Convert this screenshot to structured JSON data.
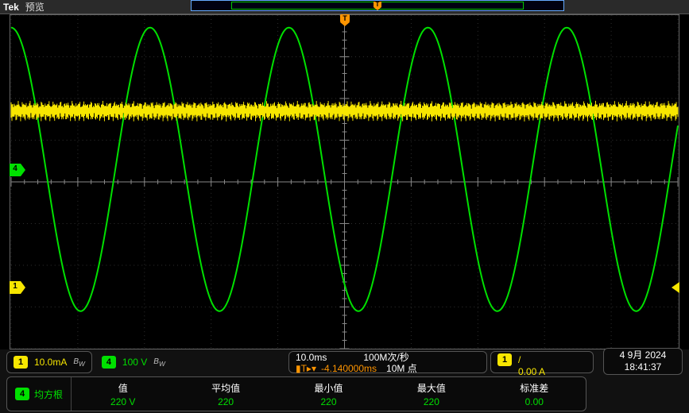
{
  "brand": "Tek",
  "mode": "预览",
  "colors": {
    "ch1": "#f7e600",
    "ch4": "#00e000",
    "trigger": "#ff9500",
    "grid_major": "#303030",
    "grid_minor": "#1a1a1a",
    "background": "#000000",
    "border": "#666666"
  },
  "horizontal": {
    "divisions": 10,
    "timebase": "10.0ms",
    "sample_rate": "100M次/秒",
    "record_length": "10M 点",
    "trigger_pos_label": "T",
    "delay": "-4.140000ms"
  },
  "vertical": {
    "divisions": 8
  },
  "channels": {
    "ch1": {
      "num": "1",
      "scale": "10.0mA",
      "bw_limited": true,
      "position_div": -2.5,
      "waveform": {
        "type": "noise",
        "center_div": 1.7,
        "amplitude_div": 0.25,
        "color": "#f7e600"
      }
    },
    "ch4": {
      "num": "4",
      "scale": "100 V",
      "bw_limited": true,
      "position_div": 0.3,
      "waveform": {
        "type": "sine",
        "center_div": 0.3,
        "amplitude_div": 3.4,
        "cycles": 4.8,
        "phase_deg": 90,
        "color": "#00e000"
      }
    }
  },
  "trigger": {
    "source": "1",
    "slope_label": "/",
    "level": "0.00 A"
  },
  "datetime": {
    "date": "4 9月 2024",
    "time": "18:41:37"
  },
  "measurement": {
    "source": "4",
    "name": "均方根",
    "columns": [
      {
        "hdr": "值",
        "val": "220 V"
      },
      {
        "hdr": "平均值",
        "val": "220"
      },
      {
        "hdr": "最小值",
        "val": "220"
      },
      {
        "hdr": "最大值",
        "val": "220"
      },
      {
        "hdr": "标准差",
        "val": "0.00"
      }
    ]
  }
}
